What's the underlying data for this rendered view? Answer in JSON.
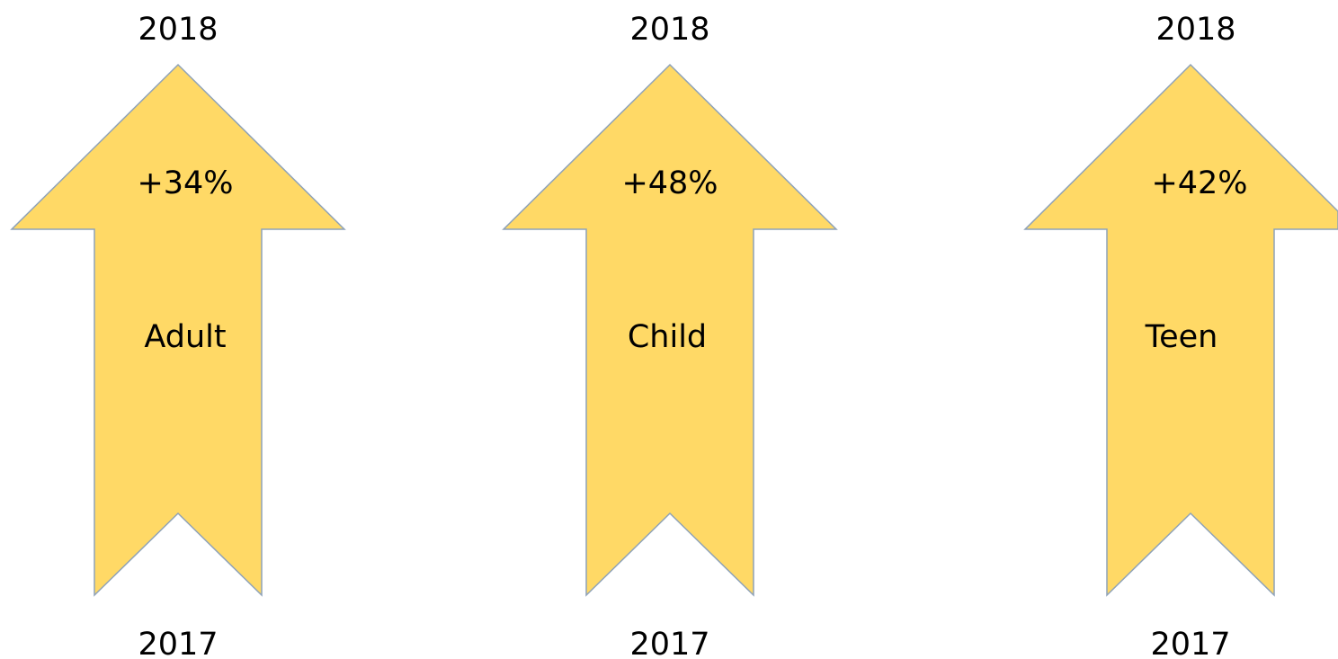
{
  "colors": {
    "arrow_fill": "#FFD966",
    "arrow_stroke": "#8EA2B8",
    "text": "#000000",
    "background": "#FFFFFF"
  },
  "arrows": [
    {
      "top_year": "2018",
      "change": "+34%",
      "group": "Adult",
      "bottom_year": "2017"
    },
    {
      "top_year": "2018",
      "change": "+48%",
      "group": "Child",
      "bottom_year": "2017"
    },
    {
      "top_year": "2018",
      "change": "+42%",
      "group": "Teen",
      "bottom_year": "2017"
    }
  ]
}
